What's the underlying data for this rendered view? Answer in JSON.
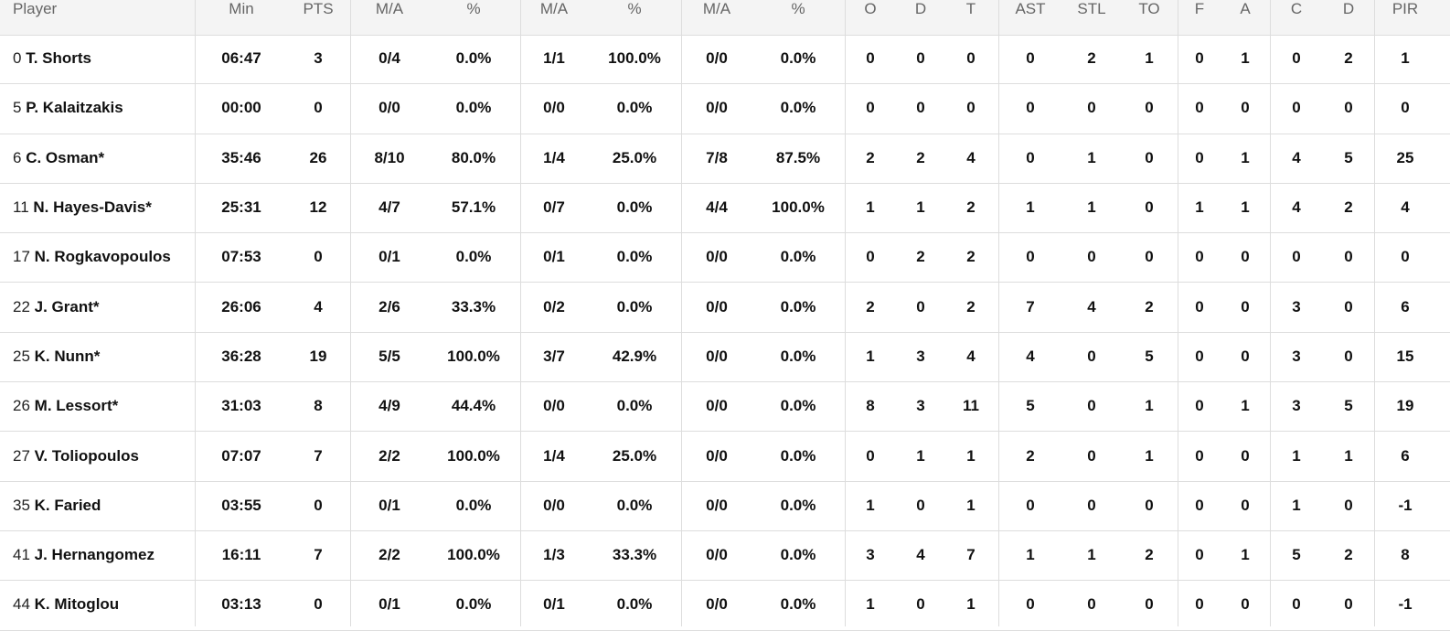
{
  "table": {
    "headers": [
      "Player",
      "Min",
      "PTS",
      "M/A",
      "%",
      "M/A",
      "%",
      "M/A",
      "%",
      "O",
      "D",
      "T",
      "AST",
      "STL",
      "TO",
      "F",
      "A",
      "C",
      "D",
      "PIR"
    ],
    "rows": [
      {
        "number": "0",
        "name": "T. Shorts",
        "cells": [
          "06:47",
          "3",
          "0/4",
          "0.0%",
          "1/1",
          "100.0%",
          "0/0",
          "0.0%",
          "0",
          "0",
          "0",
          "0",
          "2",
          "1",
          "0",
          "1",
          "0",
          "2",
          "1"
        ]
      },
      {
        "number": "5",
        "name": "P. Kalaitzakis",
        "cells": [
          "00:00",
          "0",
          "0/0",
          "0.0%",
          "0/0",
          "0.0%",
          "0/0",
          "0.0%",
          "0",
          "0",
          "0",
          "0",
          "0",
          "0",
          "0",
          "0",
          "0",
          "0",
          "0"
        ]
      },
      {
        "number": "6",
        "name": "C. Osman*",
        "cells": [
          "35:46",
          "26",
          "8/10",
          "80.0%",
          "1/4",
          "25.0%",
          "7/8",
          "87.5%",
          "2",
          "2",
          "4",
          "0",
          "1",
          "0",
          "0",
          "1",
          "4",
          "5",
          "25"
        ]
      },
      {
        "number": "11",
        "name": "N. Hayes-Davis*",
        "cells": [
          "25:31",
          "12",
          "4/7",
          "57.1%",
          "0/7",
          "0.0%",
          "4/4",
          "100.0%",
          "1",
          "1",
          "2",
          "1",
          "1",
          "0",
          "1",
          "1",
          "4",
          "2",
          "4"
        ]
      },
      {
        "number": "17",
        "name": "N. Rogkavopoulos",
        "cells": [
          "07:53",
          "0",
          "0/1",
          "0.0%",
          "0/1",
          "0.0%",
          "0/0",
          "0.0%",
          "0",
          "2",
          "2",
          "0",
          "0",
          "0",
          "0",
          "0",
          "0",
          "0",
          "0"
        ]
      },
      {
        "number": "22",
        "name": "J. Grant*",
        "cells": [
          "26:06",
          "4",
          "2/6",
          "33.3%",
          "0/2",
          "0.0%",
          "0/0",
          "0.0%",
          "2",
          "0",
          "2",
          "7",
          "4",
          "2",
          "0",
          "0",
          "3",
          "0",
          "6"
        ]
      },
      {
        "number": "25",
        "name": "K. Nunn*",
        "cells": [
          "36:28",
          "19",
          "5/5",
          "100.0%",
          "3/7",
          "42.9%",
          "0/0",
          "0.0%",
          "1",
          "3",
          "4",
          "4",
          "0",
          "5",
          "0",
          "0",
          "3",
          "0",
          "15"
        ]
      },
      {
        "number": "26",
        "name": "M. Lessort*",
        "cells": [
          "31:03",
          "8",
          "4/9",
          "44.4%",
          "0/0",
          "0.0%",
          "0/0",
          "0.0%",
          "8",
          "3",
          "11",
          "5",
          "0",
          "1",
          "0",
          "1",
          "3",
          "5",
          "19"
        ]
      },
      {
        "number": "27",
        "name": "V. Toliopoulos",
        "cells": [
          "07:07",
          "7",
          "2/2",
          "100.0%",
          "1/4",
          "25.0%",
          "0/0",
          "0.0%",
          "0",
          "1",
          "1",
          "2",
          "0",
          "1",
          "0",
          "0",
          "1",
          "1",
          "6"
        ]
      },
      {
        "number": "35",
        "name": "K. Faried",
        "cells": [
          "03:55",
          "0",
          "0/1",
          "0.0%",
          "0/0",
          "0.0%",
          "0/0",
          "0.0%",
          "1",
          "0",
          "1",
          "0",
          "0",
          "0",
          "0",
          "0",
          "1",
          "0",
          "-1"
        ]
      },
      {
        "number": "41",
        "name": "J. Hernangomez",
        "cells": [
          "16:11",
          "7",
          "2/2",
          "100.0%",
          "1/3",
          "33.3%",
          "0/0",
          "0.0%",
          "3",
          "4",
          "7",
          "1",
          "1",
          "2",
          "0",
          "1",
          "5",
          "2",
          "8"
        ]
      },
      {
        "number": "44",
        "name": "K. Mitoglou",
        "cells": [
          "03:13",
          "0",
          "0/1",
          "0.0%",
          "0/1",
          "0.0%",
          "0/0",
          "0.0%",
          "1",
          "0",
          "1",
          "0",
          "0",
          "0",
          "0",
          "0",
          "0",
          "0",
          "-1"
        ]
      }
    ]
  }
}
